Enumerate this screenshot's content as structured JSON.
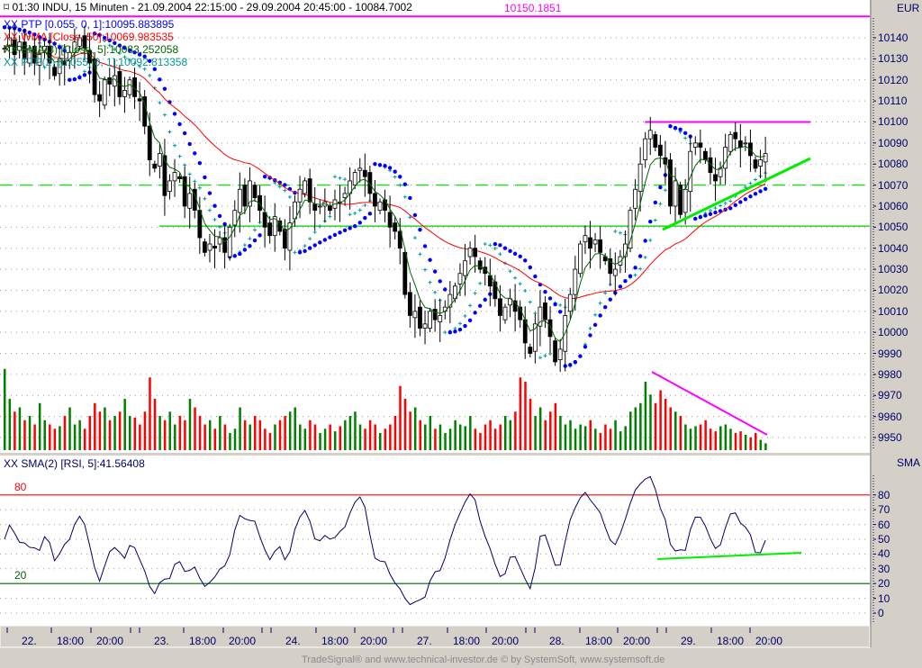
{
  "header": {
    "title": "01:30 INDU, 15 Minuten - 21.09.2004 22:15:00 - 29.09.2004 20:45:00 - 10084.7002",
    "marker_value": "10150.1851",
    "currency": "EUR"
  },
  "legend": [
    {
      "label": "XX PTP [0.055, 0, 1]:10095.883895",
      "color": "#0000ff"
    },
    {
      "label": "XX WMA [Close, 50]:10069.983535",
      "color": "#ff0000"
    },
    {
      "label": "XX EMA(3) [Close, 5]:10083.252058",
      "color": "#006400"
    },
    {
      "label": "XX PTP(2) [0.055, 0, 1]:10092.813358",
      "color": "#009999"
    }
  ],
  "rsi_pane": {
    "legend": "XX SMA(2) [RSI, 5]:41.56408",
    "axis_title": "SMA",
    "upper_label": "80",
    "lower_label": "20",
    "upper_color": "#ff0000",
    "lower_color": "#006400",
    "line_color": "#000066",
    "ticks": [
      "80",
      "70",
      "60",
      "50",
      "40",
      "30",
      "20",
      "10",
      "0"
    ]
  },
  "price_axis": {
    "ticks": [
      "10140",
      "10130",
      "10120",
      "10110",
      "10100",
      "10090",
      "10080",
      "10070",
      "10060",
      "10050",
      "10040",
      "10030",
      "10020",
      "10010",
      "10000",
      "9990",
      "9980",
      "9970",
      "9960",
      "9950"
    ]
  },
  "time_axis": {
    "labels": [
      "22.",
      "18:00",
      "20:00",
      "23.",
      "18:00",
      "20:00",
      "24.",
      "18:00",
      "20:00",
      "27.",
      "18:00",
      "20:00",
      "28.",
      "18:00",
      "20:00",
      "29.",
      "18:00",
      "20:00"
    ]
  },
  "footer": "TradeSignal® and www.technical-investor.de © by SystemSoft, www.systemsoft.de",
  "chart_data": {
    "type": "candlestick",
    "interval": "15 Minuten",
    "ylim": [
      9945,
      10152
    ],
    "rsi_ylim": [
      -5,
      100
    ],
    "colors": {
      "up_volume": "#008000",
      "down_volume": "#ff0000",
      "wma": "#ff0000",
      "ema": "#006400",
      "ptp": "#0000ff",
      "ptp2": "#009999"
    },
    "close": [
      10135,
      10140,
      10132,
      10138,
      10130,
      10135,
      10128,
      10132,
      10136,
      10128,
      10122,
      10130,
      10127,
      10133,
      10138,
      10140,
      10135,
      10128,
      10113,
      10110,
      10120,
      10118,
      10122,
      10112,
      10115,
      10120,
      10112,
      10110,
      10098,
      10082,
      10078,
      10085,
      10065,
      10072,
      10076,
      10073,
      10060,
      10066,
      10058,
      10045,
      10038,
      10042,
      10040,
      10045,
      10038,
      10050,
      10058,
      10068,
      10060,
      10072,
      10064,
      10058,
      10050,
      10046,
      10055,
      10048,
      10040,
      10052,
      10062,
      10068,
      10072,
      10062,
      10058,
      10060,
      10062,
      10058,
      10063,
      10062,
      10066,
      10072,
      10076,
      10078,
      10074,
      10066,
      10060,
      10062,
      10058,
      10050,
      10048,
      10040,
      10018,
      10008,
      10010,
      10002,
      10004,
      10010,
      10006,
      10008,
      10012,
      10018,
      10022,
      10028,
      10034,
      10040,
      10036,
      10030,
      10028,
      10022,
      10016,
      10008,
      10012,
      10016,
      10010,
      10006,
      9995,
      9990,
      10004,
      10012,
      10006,
      9998,
      9986,
      9992,
      10008,
      10018,
      10030,
      10042,
      10046,
      10040,
      10044,
      10038,
      10034,
      10028,
      10030,
      10036,
      10042,
      10058,
      10068,
      10080,
      10092,
      10096,
      10088,
      10084,
      10080,
      10060,
      10072,
      10056,
      10068,
      10086,
      10090,
      10088,
      10082,
      10076,
      10072,
      10078,
      10088,
      10094,
      10092,
      10088,
      10090,
      10084,
      10078,
      10082,
      10085
    ],
    "volume": [
      95,
      60,
      45,
      50,
      35,
      40,
      30,
      55,
      35,
      30,
      25,
      28,
      40,
      50,
      30,
      35,
      25,
      40,
      55,
      45,
      50,
      35,
      40,
      45,
      60,
      40,
      38,
      30,
      45,
      85,
      60,
      40,
      35,
      45,
      30,
      40,
      35,
      60,
      50,
      40,
      30,
      35,
      25,
      40,
      30,
      20,
      25,
      50,
      35,
      30,
      40,
      35,
      25,
      20,
      30,
      35,
      40,
      45,
      50,
      30,
      25,
      35,
      30,
      20,
      25,
      30,
      22,
      28,
      35,
      40,
      45,
      30,
      25,
      35,
      30,
      20,
      25,
      30,
      40,
      75,
      60,
      45,
      50,
      35,
      30,
      40,
      25,
      30,
      20,
      25,
      35,
      30,
      28,
      40,
      25,
      20,
      30,
      35,
      25,
      30,
      40,
      35,
      45,
      85,
      80,
      60,
      40,
      50,
      35,
      45,
      55,
      40,
      30,
      35,
      25,
      30,
      28,
      35,
      25,
      20,
      30,
      25,
      35,
      22,
      28,
      45,
      50,
      55,
      80,
      65,
      55,
      70,
      60,
      50,
      45,
      40,
      30,
      25,
      28,
      30,
      35,
      25,
      22,
      28,
      30,
      25,
      20,
      22,
      18,
      15,
      20,
      12,
      8
    ],
    "horizontal_levels": [
      {
        "price": 10150.1851,
        "color": "#ff00ff",
        "style": "solid"
      },
      {
        "price": 10100,
        "color": "#ff00ff",
        "style": "solid",
        "from_bar": 129
      },
      {
        "price": 10070,
        "color": "#00ee00",
        "style": "dashed"
      },
      {
        "price": 10050.5,
        "color": "#00cc00",
        "style": "solid",
        "from_bar": 32
      }
    ]
  }
}
